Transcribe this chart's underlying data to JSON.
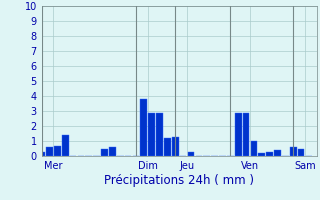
{
  "bar_positions": [
    1,
    2,
    3,
    4,
    5,
    6,
    7,
    8,
    9,
    10,
    11,
    12,
    13,
    14,
    15,
    16,
    17,
    18,
    19,
    20,
    21,
    22,
    23,
    24,
    25,
    26,
    27,
    28,
    29,
    30,
    31,
    32,
    33,
    34,
    35
  ],
  "bar_values": [
    0.3,
    0.6,
    0.7,
    1.4,
    0.0,
    0.0,
    0.0,
    0.0,
    0.5,
    0.6,
    0.0,
    0.0,
    0.0,
    3.8,
    2.9,
    2.9,
    1.2,
    1.3,
    0.0,
    0.3,
    0.0,
    0.0,
    0.0,
    0.0,
    0.0,
    2.9,
    2.9,
    1.0,
    0.2,
    0.3,
    0.4,
    0.0,
    0.6,
    0.5,
    0.0
  ],
  "day_labels": [
    "Mer",
    "Dim",
    "Jeu",
    "Ven",
    "Sam"
  ],
  "day_tick_positions": [
    2.5,
    14.5,
    19.5,
    27.5,
    34.5
  ],
  "day_line_positions": [
    1,
    13,
    18,
    25,
    33
  ],
  "xlabel": "Précipitations 24h ( mm )",
  "ylim": [
    0,
    10
  ],
  "xlim": [
    1,
    36
  ],
  "yticks": [
    0,
    1,
    2,
    3,
    4,
    5,
    6,
    7,
    8,
    9,
    10
  ],
  "bar_color": "#0033cc",
  "bar_edge_color": "#3366ff",
  "bg_color": "#dff5f5",
  "grid_color": "#aacccc",
  "text_color": "#0000aa",
  "xlabel_fontsize": 8.5,
  "tick_fontsize": 7
}
